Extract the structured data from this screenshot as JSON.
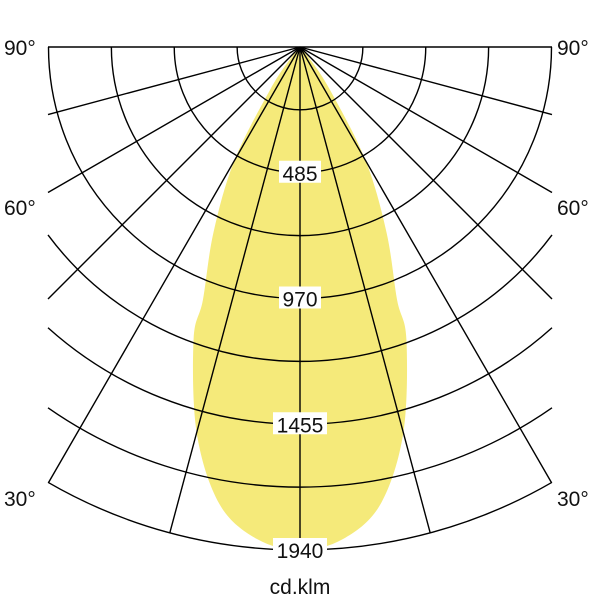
{
  "chart_data": {
    "type": "polar",
    "unit_label": "cd.klm",
    "radial_ticks": [
      "485",
      "970",
      "1455",
      "1940"
    ],
    "radial_max": 1940,
    "radial_grid_step": 242.5,
    "angle_grid_step_deg": 15,
    "angle_labels_left": [
      "90°",
      "60°",
      "30°"
    ],
    "angle_labels_right": [
      "90°",
      "60°",
      "30°"
    ],
    "fill_color": "#f5ea7a",
    "grid_color": "#000000",
    "series": [
      {
        "angles_deg": [
          0,
          5,
          10,
          15,
          20,
          21,
          25,
          30,
          35,
          40,
          45
        ],
        "values": [
          1940,
          1905,
          1790,
          1540,
          1200,
          1045,
          790,
          507,
          200,
          50,
          0
        ],
        "symmetric": true
      }
    ]
  }
}
